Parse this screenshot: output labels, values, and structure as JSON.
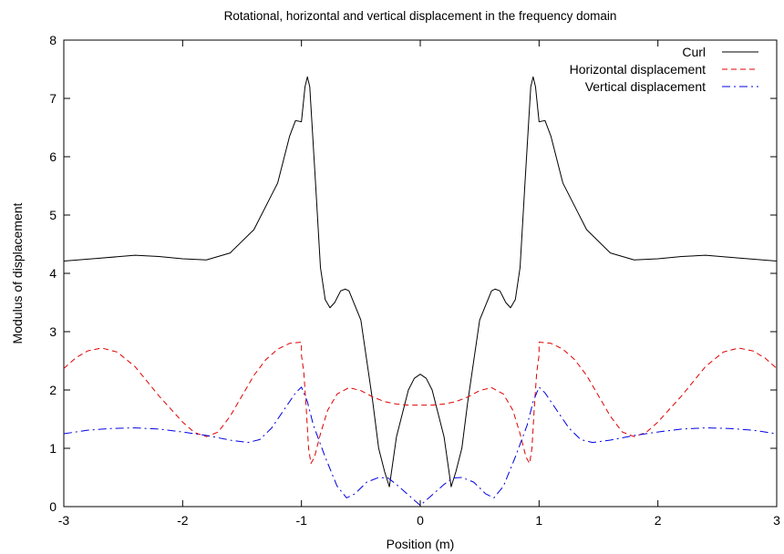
{
  "chart_data": {
    "type": "line",
    "title": "Rotational, horizontal and vertical displacement in the frequency domain",
    "xlabel": "Position (m)",
    "ylabel": "Modulus of displacement",
    "xlim": [
      -3,
      3
    ],
    "ylim": [
      0,
      8
    ],
    "xticks": [
      -3,
      -2,
      -1,
      0,
      1,
      2,
      3
    ],
    "yticks": [
      0,
      1,
      2,
      3,
      4,
      5,
      6,
      7,
      8
    ],
    "grid": false,
    "legend": "top-right",
    "series": [
      {
        "name": "Curl",
        "color": "#000000",
        "dash": "solid",
        "points": [
          [
            -3.0,
            4.21
          ],
          [
            -2.7,
            4.26
          ],
          [
            -2.4,
            4.31
          ],
          [
            -2.2,
            4.29
          ],
          [
            -2.0,
            4.25
          ],
          [
            -1.8,
            4.23
          ],
          [
            -1.6,
            4.35
          ],
          [
            -1.4,
            4.75
          ],
          [
            -1.2,
            5.55
          ],
          [
            -1.1,
            6.35
          ],
          [
            -1.05,
            6.62
          ],
          [
            -1.0,
            6.6
          ],
          [
            -0.97,
            7.2
          ],
          [
            -0.95,
            7.37
          ],
          [
            -0.93,
            7.2
          ],
          [
            -0.88,
            5.5
          ],
          [
            -0.84,
            4.1
          ],
          [
            -0.8,
            3.55
          ],
          [
            -0.76,
            3.41
          ],
          [
            -0.72,
            3.5
          ],
          [
            -0.67,
            3.7
          ],
          [
            -0.63,
            3.73
          ],
          [
            -0.6,
            3.7
          ],
          [
            -0.5,
            3.2
          ],
          [
            -0.4,
            1.8
          ],
          [
            -0.35,
            1.0
          ],
          [
            -0.3,
            0.6
          ],
          [
            -0.26,
            0.34
          ],
          [
            -0.2,
            1.2
          ],
          [
            -0.15,
            1.6
          ],
          [
            -0.1,
            2.0
          ],
          [
            -0.05,
            2.2
          ],
          [
            0.0,
            2.27
          ],
          [
            0.05,
            2.2
          ],
          [
            0.1,
            2.0
          ],
          [
            0.15,
            1.6
          ],
          [
            0.2,
            1.2
          ],
          [
            0.26,
            0.34
          ],
          [
            0.3,
            0.6
          ],
          [
            0.35,
            1.0
          ],
          [
            0.4,
            1.8
          ],
          [
            0.5,
            3.2
          ],
          [
            0.6,
            3.7
          ],
          [
            0.63,
            3.73
          ],
          [
            0.67,
            3.7
          ],
          [
            0.72,
            3.5
          ],
          [
            0.76,
            3.41
          ],
          [
            0.8,
            3.55
          ],
          [
            0.84,
            4.1
          ],
          [
            0.88,
            5.5
          ],
          [
            0.93,
            7.2
          ],
          [
            0.95,
            7.37
          ],
          [
            0.97,
            7.2
          ],
          [
            1.0,
            6.6
          ],
          [
            1.05,
            6.62
          ],
          [
            1.1,
            6.35
          ],
          [
            1.2,
            5.55
          ],
          [
            1.4,
            4.75
          ],
          [
            1.6,
            4.35
          ],
          [
            1.8,
            4.23
          ],
          [
            2.0,
            4.25
          ],
          [
            2.2,
            4.29
          ],
          [
            2.4,
            4.31
          ],
          [
            2.7,
            4.26
          ],
          [
            3.0,
            4.21
          ]
        ]
      },
      {
        "name": "Horizontal displacement",
        "color": "#e00000",
        "dash": "dashed",
        "points": [
          [
            -3.0,
            2.37
          ],
          [
            -2.9,
            2.55
          ],
          [
            -2.8,
            2.67
          ],
          [
            -2.68,
            2.72
          ],
          [
            -2.55,
            2.65
          ],
          [
            -2.4,
            2.4
          ],
          [
            -2.2,
            1.9
          ],
          [
            -2.0,
            1.45
          ],
          [
            -1.9,
            1.27
          ],
          [
            -1.8,
            1.2
          ],
          [
            -1.7,
            1.28
          ],
          [
            -1.6,
            1.55
          ],
          [
            -1.5,
            1.9
          ],
          [
            -1.4,
            2.25
          ],
          [
            -1.3,
            2.52
          ],
          [
            -1.2,
            2.7
          ],
          [
            -1.1,
            2.8
          ],
          [
            -1.0,
            2.82
          ],
          [
            -1.0,
            2.6
          ],
          [
            -0.98,
            2.3
          ],
          [
            -0.96,
            1.7
          ],
          [
            -0.94,
            1.0
          ],
          [
            -0.92,
            0.74
          ],
          [
            -0.89,
            0.85
          ],
          [
            -0.84,
            1.25
          ],
          [
            -0.78,
            1.65
          ],
          [
            -0.7,
            1.93
          ],
          [
            -0.6,
            2.04
          ],
          [
            -0.5,
            1.99
          ],
          [
            -0.4,
            1.88
          ],
          [
            -0.3,
            1.8
          ],
          [
            -0.2,
            1.76
          ],
          [
            -0.1,
            1.74
          ],
          [
            0.0,
            1.74
          ],
          [
            0.1,
            1.74
          ],
          [
            0.2,
            1.76
          ],
          [
            0.3,
            1.8
          ],
          [
            0.4,
            1.88
          ],
          [
            0.5,
            1.99
          ],
          [
            0.6,
            2.04
          ],
          [
            0.7,
            1.93
          ],
          [
            0.78,
            1.65
          ],
          [
            0.84,
            1.25
          ],
          [
            0.89,
            0.85
          ],
          [
            0.92,
            0.74
          ],
          [
            0.94,
            1.0
          ],
          [
            0.96,
            1.7
          ],
          [
            0.98,
            2.3
          ],
          [
            1.0,
            2.6
          ],
          [
            1.0,
            2.82
          ],
          [
            1.1,
            2.8
          ],
          [
            1.2,
            2.7
          ],
          [
            1.3,
            2.52
          ],
          [
            1.4,
            2.25
          ],
          [
            1.5,
            1.9
          ],
          [
            1.6,
            1.55
          ],
          [
            1.7,
            1.28
          ],
          [
            1.8,
            1.2
          ],
          [
            1.9,
            1.27
          ],
          [
            2.0,
            1.45
          ],
          [
            2.2,
            1.9
          ],
          [
            2.4,
            2.4
          ],
          [
            2.55,
            2.65
          ],
          [
            2.68,
            2.72
          ],
          [
            2.8,
            2.67
          ],
          [
            2.9,
            2.55
          ],
          [
            3.0,
            2.37
          ]
        ]
      },
      {
        "name": "Vertical displacement",
        "color": "#0000e0",
        "dash": "dashdot",
        "points": [
          [
            -3.0,
            1.25
          ],
          [
            -2.8,
            1.31
          ],
          [
            -2.6,
            1.34
          ],
          [
            -2.4,
            1.35
          ],
          [
            -2.2,
            1.33
          ],
          [
            -2.0,
            1.28
          ],
          [
            -1.8,
            1.22
          ],
          [
            -1.6,
            1.14
          ],
          [
            -1.45,
            1.1
          ],
          [
            -1.35,
            1.15
          ],
          [
            -1.25,
            1.35
          ],
          [
            -1.15,
            1.65
          ],
          [
            -1.05,
            1.95
          ],
          [
            -1.0,
            2.05
          ],
          [
            -0.95,
            1.8
          ],
          [
            -0.9,
            1.4
          ],
          [
            -0.8,
            0.85
          ],
          [
            -0.7,
            0.35
          ],
          [
            -0.62,
            0.15
          ],
          [
            -0.55,
            0.22
          ],
          [
            -0.45,
            0.42
          ],
          [
            -0.35,
            0.5
          ],
          [
            -0.27,
            0.49
          ],
          [
            -0.2,
            0.38
          ],
          [
            -0.1,
            0.2
          ],
          [
            0.0,
            0.02
          ],
          [
            0.1,
            0.2
          ],
          [
            0.2,
            0.38
          ],
          [
            0.27,
            0.49
          ],
          [
            0.35,
            0.5
          ],
          [
            0.45,
            0.42
          ],
          [
            0.55,
            0.22
          ],
          [
            0.62,
            0.15
          ],
          [
            0.7,
            0.35
          ],
          [
            0.8,
            0.85
          ],
          [
            0.9,
            1.4
          ],
          [
            0.95,
            1.8
          ],
          [
            1.0,
            2.05
          ],
          [
            1.05,
            1.95
          ],
          [
            1.15,
            1.65
          ],
          [
            1.25,
            1.35
          ],
          [
            1.35,
            1.15
          ],
          [
            1.45,
            1.1
          ],
          [
            1.6,
            1.14
          ],
          [
            1.8,
            1.22
          ],
          [
            2.0,
            1.28
          ],
          [
            2.2,
            1.33
          ],
          [
            2.4,
            1.35
          ],
          [
            2.6,
            1.34
          ],
          [
            2.8,
            1.31
          ],
          [
            3.0,
            1.25
          ]
        ]
      }
    ]
  }
}
